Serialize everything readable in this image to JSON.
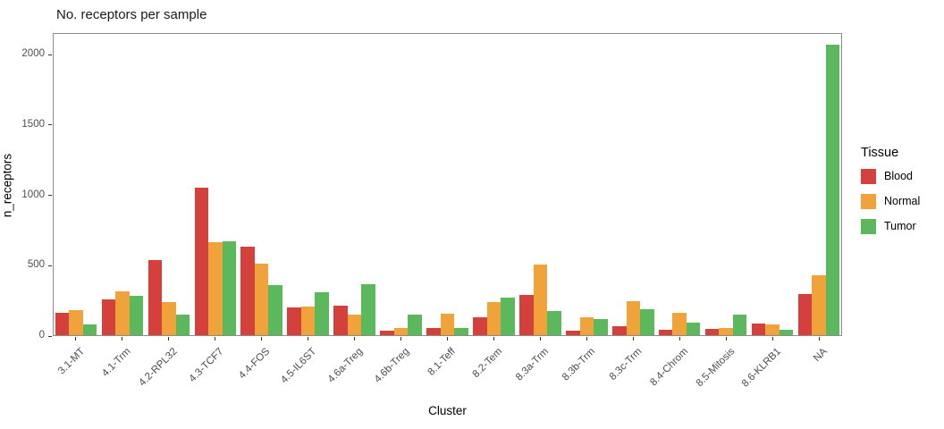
{
  "chart_data": {
    "type": "bar",
    "title": "No. receptors per sample",
    "xlabel": "Cluster",
    "ylabel": "n_receptors",
    "legend_title": "Tissue",
    "legend_position": "right",
    "grid": false,
    "ylim": [
      0,
      2154
    ],
    "y_ticks": [
      0,
      500,
      1000,
      1500,
      2000
    ],
    "categories": [
      "3.1-MT",
      "4.1-Trm",
      "4.2-RPL32",
      "4.3-TCF7",
      "4.4-FOS",
      "4.5-IL6ST",
      "4.6a-Treg",
      "4.6b-Treg",
      "8.1-Teff",
      "8.2-Tem",
      "8.3a-Trm",
      "8.3b-Trm",
      "8.3c-Trm",
      "8.4-Chrom",
      "8.5-Mitosis",
      "8.6-KLRB1",
      "NA"
    ],
    "series": [
      {
        "name": "Blood",
        "color": "#d4403c",
        "values": [
          162,
          257,
          537,
          1050,
          628,
          198,
          211,
          29,
          50,
          128,
          285,
          35,
          62,
          39,
          45,
          80,
          293
        ]
      },
      {
        "name": "Normal",
        "color": "#efa33a",
        "values": [
          179,
          314,
          234,
          660,
          511,
          204,
          147,
          50,
          151,
          236,
          505,
          130,
          240,
          162,
          52,
          78,
          427
        ]
      },
      {
        "name": "Tumor",
        "color": "#5bb85c",
        "values": [
          78,
          278,
          149,
          668,
          357,
          303,
          363,
          147,
          52,
          268,
          173,
          115,
          183,
          88,
          145,
          41,
          2065
        ]
      }
    ]
  }
}
